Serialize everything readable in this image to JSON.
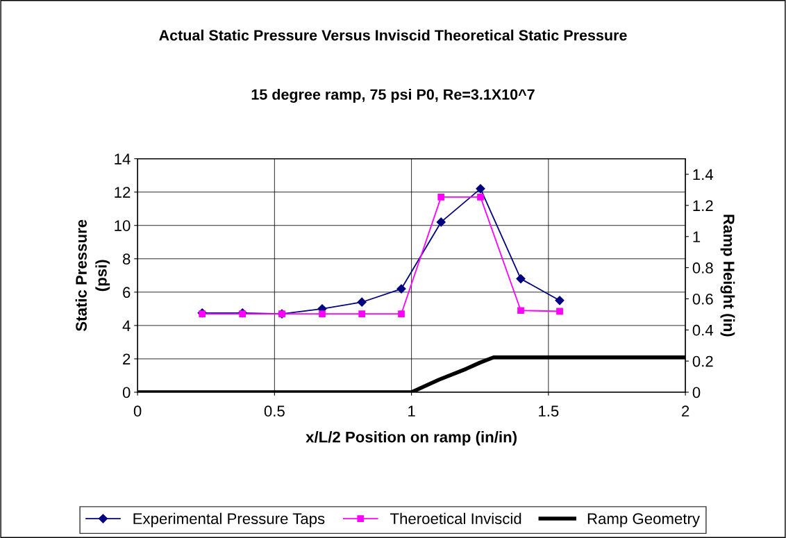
{
  "chart_data": {
    "type": "line",
    "title": "Actual Static Pressure Versus Inviscid Theoretical Static Pressure",
    "subtitle": "15 degree ramp, 75 psi P0, Re=3.1X10^7",
    "xlabel": "x/L/2 Position on ramp (in/in)",
    "ylabel": "Static Pressure (psi)",
    "y2label": "Ramp Height (in)",
    "xlim": [
      0,
      2
    ],
    "xticks": [
      0,
      0.5,
      1,
      1.5,
      2
    ],
    "ylim": [
      0,
      14
    ],
    "yticks": [
      0,
      2,
      4,
      6,
      8,
      10,
      12,
      14
    ],
    "y2lim": [
      0,
      1.5
    ],
    "y2ticks": [
      0,
      0.2,
      0.4,
      0.6,
      0.8,
      1,
      1.2,
      1.4
    ],
    "grid": true,
    "legend": "bottom",
    "series": [
      {
        "name": "Experimental Pressure Taps",
        "color": "#000080",
        "marker": "diamond",
        "x": [
          0.236,
          0.383,
          0.527,
          0.674,
          0.819,
          0.963,
          1.108,
          1.252,
          1.399,
          1.541
        ],
        "values": [
          4.75,
          4.75,
          4.7,
          5.0,
          5.4,
          6.2,
          10.2,
          12.2,
          6.8,
          5.5
        ]
      },
      {
        "name": "Theroetical Inviscid",
        "color": "#ff00ff",
        "marker": "square",
        "x": [
          0.236,
          0.383,
          0.527,
          0.674,
          0.819,
          0.963,
          1.108,
          1.252,
          1.399,
          1.541
        ],
        "values": [
          4.7,
          4.7,
          4.7,
          4.7,
          4.7,
          4.7,
          11.7,
          11.7,
          4.9,
          4.85
        ]
      },
      {
        "name": "Ramp Geometry",
        "color": "#000000",
        "marker": "none",
        "axis": "y2",
        "x": [
          0,
          1,
          1.1,
          1.2,
          1.25,
          1.3,
          2
        ],
        "values": [
          0,
          0,
          0.08,
          0.15,
          0.19,
          0.224,
          0.224
        ]
      }
    ]
  }
}
